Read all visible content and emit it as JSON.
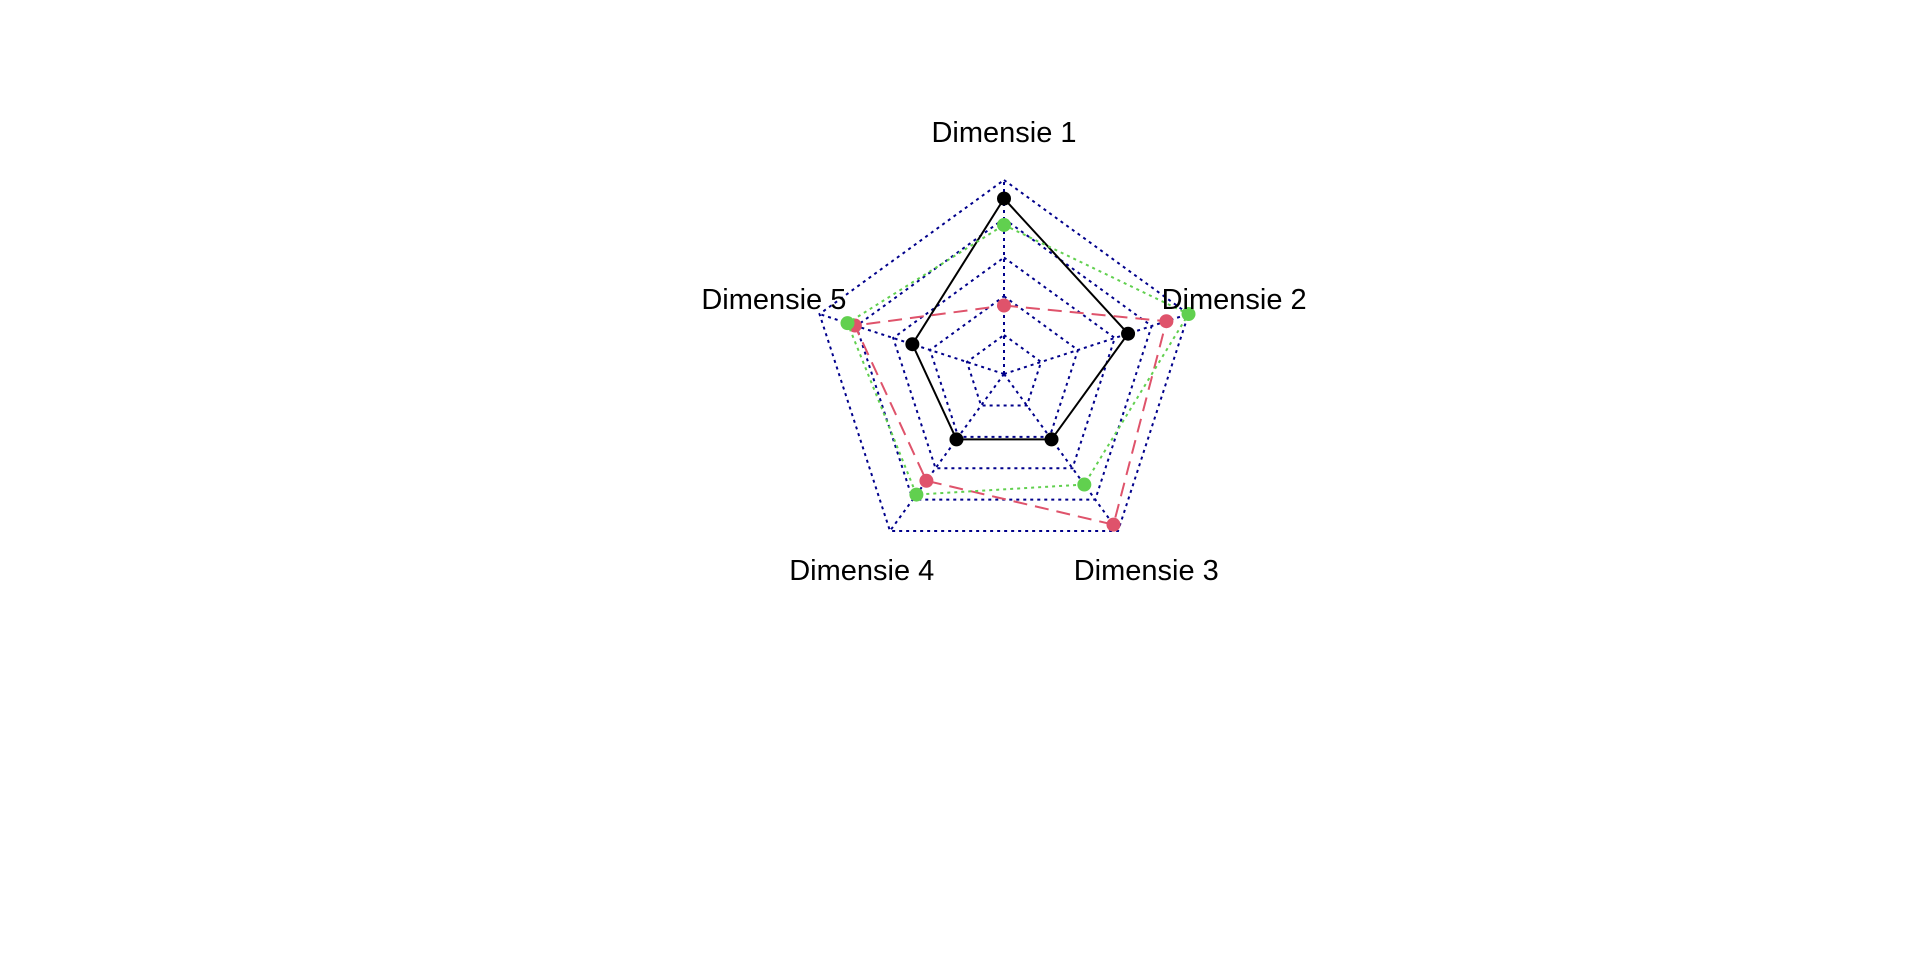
{
  "chart_data": {
    "type": "radar",
    "title": "",
    "axes": [
      "Dimensie 1",
      "Dimensie 2",
      "Dimensie 3",
      "Dimensie 4",
      "Dimensie 5"
    ],
    "range": [
      0,
      1
    ],
    "grid_levels": 4,
    "series": [
      {
        "values": [
          0.88,
          0.59,
          0.27,
          0.27,
          0.37
        ],
        "color": "#000000",
        "line_style": "solid"
      },
      {
        "values": [
          0.19,
          0.85,
          0.95,
          0.6,
          0.76
        ],
        "color": "#DF536B",
        "line_style": "dashed"
      },
      {
        "values": [
          0.71,
          1.0,
          0.63,
          0.71,
          0.81
        ],
        "color": "#61D04F",
        "line_style": "dotted"
      }
    ],
    "grid_color": "#00008B"
  }
}
